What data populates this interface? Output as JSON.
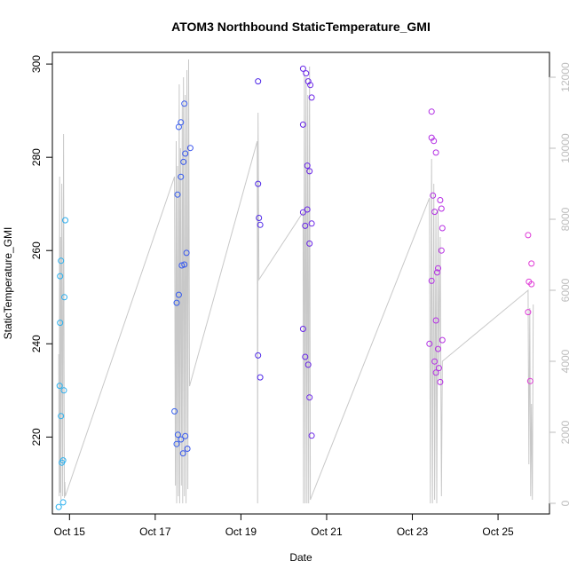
{
  "chart_data": {
    "type": "scatter",
    "title": "ATOM3 Northbound StaticTemperature_GMI",
    "xlabel": "Date",
    "ylabel": "StaticTemperature_GMI",
    "xlim": [
      14.6,
      26.2
    ],
    "ylim": [
      203.5,
      302.5
    ],
    "y2lim": [
      -300,
      12700
    ],
    "x_ticks": [
      {
        "value": 15,
        "label": "Oct 15"
      },
      {
        "value": 17,
        "label": "Oct 17"
      },
      {
        "value": 19,
        "label": "Oct 19"
      },
      {
        "value": 21,
        "label": "Oct 21"
      },
      {
        "value": 23,
        "label": "Oct 23"
      },
      {
        "value": 25,
        "label": "Oct 25"
      }
    ],
    "y_ticks": [
      220,
      240,
      260,
      280,
      300
    ],
    "y2_ticks": [
      0,
      2000,
      4000,
      6000,
      8000,
      10000,
      12000
    ],
    "grid": false,
    "legend": "none",
    "colors": {
      "secondary_line": "#c8c8c8",
      "right_axis": "#bdbdbd",
      "point_gradient": [
        "#2bb2ee",
        "#2d6df0",
        "#4a2ae8",
        "#7b22e6",
        "#b52ee4",
        "#e03ad6"
      ]
    },
    "points": [
      {
        "x": 14.75,
        "y": 205.0
      },
      {
        "x": 14.77,
        "y": 231.0
      },
      {
        "x": 14.78,
        "y": 244.5
      },
      {
        "x": 14.78,
        "y": 254.5
      },
      {
        "x": 14.8,
        "y": 257.8
      },
      {
        "x": 14.8,
        "y": 224.5
      },
      {
        "x": 14.82,
        "y": 214.5
      },
      {
        "x": 14.85,
        "y": 215.0
      },
      {
        "x": 14.85,
        "y": 206.0
      },
      {
        "x": 14.87,
        "y": 230.0
      },
      {
        "x": 14.88,
        "y": 250.0
      },
      {
        "x": 14.9,
        "y": 266.5
      },
      {
        "x": 17.45,
        "y": 225.5
      },
      {
        "x": 17.5,
        "y": 218.5
      },
      {
        "x": 17.5,
        "y": 248.8
      },
      {
        "x": 17.52,
        "y": 272.0
      },
      {
        "x": 17.53,
        "y": 220.5
      },
      {
        "x": 17.55,
        "y": 250.5
      },
      {
        "x": 17.55,
        "y": 286.5
      },
      {
        "x": 17.6,
        "y": 287.5
      },
      {
        "x": 17.6,
        "y": 275.8
      },
      {
        "x": 17.62,
        "y": 256.8
      },
      {
        "x": 17.65,
        "y": 216.5
      },
      {
        "x": 17.66,
        "y": 279.0
      },
      {
        "x": 17.68,
        "y": 257.0
      },
      {
        "x": 17.68,
        "y": 291.5
      },
      {
        "x": 17.7,
        "y": 280.8
      },
      {
        "x": 17.7,
        "y": 220.2
      },
      {
        "x": 17.73,
        "y": 259.5
      },
      {
        "x": 17.75,
        "y": 217.5
      },
      {
        "x": 17.82,
        "y": 282.0
      },
      {
        "x": 17.6,
        "y": 219.5
      },
      {
        "x": 19.4,
        "y": 296.3
      },
      {
        "x": 19.4,
        "y": 274.3
      },
      {
        "x": 19.4,
        "y": 237.5
      },
      {
        "x": 19.42,
        "y": 267.0
      },
      {
        "x": 19.45,
        "y": 265.5
      },
      {
        "x": 19.45,
        "y": 232.8
      },
      {
        "x": 20.45,
        "y": 299.0
      },
      {
        "x": 20.45,
        "y": 287.0
      },
      {
        "x": 20.45,
        "y": 268.2
      },
      {
        "x": 20.45,
        "y": 243.2
      },
      {
        "x": 20.5,
        "y": 265.3
      },
      {
        "x": 20.5,
        "y": 237.2
      },
      {
        "x": 20.52,
        "y": 298.0
      },
      {
        "x": 20.55,
        "y": 278.2
      },
      {
        "x": 20.55,
        "y": 268.8
      },
      {
        "x": 20.57,
        "y": 296.3
      },
      {
        "x": 20.57,
        "y": 235.5
      },
      {
        "x": 20.6,
        "y": 277.0
      },
      {
        "x": 20.6,
        "y": 261.5
      },
      {
        "x": 20.6,
        "y": 228.5
      },
      {
        "x": 20.62,
        "y": 295.5
      },
      {
        "x": 20.65,
        "y": 292.8
      },
      {
        "x": 20.65,
        "y": 265.8
      },
      {
        "x": 20.65,
        "y": 220.3
      },
      {
        "x": 23.4,
        "y": 240.0
      },
      {
        "x": 23.45,
        "y": 289.8
      },
      {
        "x": 23.45,
        "y": 284.2
      },
      {
        "x": 23.45,
        "y": 253.5
      },
      {
        "x": 23.48,
        "y": 271.8
      },
      {
        "x": 23.5,
        "y": 283.5
      },
      {
        "x": 23.52,
        "y": 268.3
      },
      {
        "x": 23.52,
        "y": 236.2
      },
      {
        "x": 23.55,
        "y": 281.0
      },
      {
        "x": 23.55,
        "y": 245.0
      },
      {
        "x": 23.55,
        "y": 233.8
      },
      {
        "x": 23.58,
        "y": 255.3
      },
      {
        "x": 23.6,
        "y": 256.2
      },
      {
        "x": 23.6,
        "y": 238.9
      },
      {
        "x": 23.62,
        "y": 234.8
      },
      {
        "x": 23.65,
        "y": 270.8
      },
      {
        "x": 23.65,
        "y": 231.8
      },
      {
        "x": 23.68,
        "y": 269.0
      },
      {
        "x": 23.68,
        "y": 260.0
      },
      {
        "x": 23.7,
        "y": 264.8
      },
      {
        "x": 23.7,
        "y": 240.8
      },
      {
        "x": 25.7,
        "y": 263.3
      },
      {
        "x": 25.7,
        "y": 246.8
      },
      {
        "x": 25.72,
        "y": 253.3
      },
      {
        "x": 25.75,
        "y": 232.0
      },
      {
        "x": 25.78,
        "y": 257.2
      },
      {
        "x": 25.78,
        "y": 252.8
      }
    ],
    "secondary_line": [
      {
        "x": 14.75,
        "y2": 4200
      },
      {
        "x": 14.76,
        "y2": 200
      },
      {
        "x": 14.77,
        "y2": 9200
      },
      {
        "x": 14.78,
        "y2": 300
      },
      {
        "x": 14.79,
        "y2": 7500
      },
      {
        "x": 14.8,
        "y2": 100
      },
      {
        "x": 14.82,
        "y2": 9000
      },
      {
        "x": 14.84,
        "y2": 200
      },
      {
        "x": 14.86,
        "y2": 10400
      },
      {
        "x": 14.88,
        "y2": 150
      },
      {
        "x": 14.89,
        "y2": 600
      },
      {
        "x": 14.9,
        "y2": 200
      },
      {
        "x": 17.45,
        "y2": 9200
      },
      {
        "x": 17.47,
        "y2": 500
      },
      {
        "x": 17.49,
        "y2": 10200
      },
      {
        "x": 17.5,
        "y2": 0
      },
      {
        "x": 17.52,
        "y2": 9500
      },
      {
        "x": 17.54,
        "y2": 200
      },
      {
        "x": 17.56,
        "y2": 11800
      },
      {
        "x": 17.57,
        "y2": 0
      },
      {
        "x": 17.59,
        "y2": 10000
      },
      {
        "x": 17.61,
        "y2": 500
      },
      {
        "x": 17.63,
        "y2": 11200
      },
      {
        "x": 17.64,
        "y2": 0
      },
      {
        "x": 17.66,
        "y2": 12000
      },
      {
        "x": 17.68,
        "y2": 200
      },
      {
        "x": 17.7,
        "y2": 11500
      },
      {
        "x": 17.72,
        "y2": 0
      },
      {
        "x": 17.74,
        "y2": 12200
      },
      {
        "x": 17.76,
        "y2": 400
      },
      {
        "x": 17.78,
        "y2": 12500
      },
      {
        "x": 17.8,
        "y2": 3300
      },
      {
        "x": 19.38,
        "y2": 10200
      },
      {
        "x": 19.39,
        "y2": 0
      },
      {
        "x": 19.4,
        "y2": 11000
      },
      {
        "x": 19.42,
        "y2": 6300
      },
      {
        "x": 20.45,
        "y2": 8200
      },
      {
        "x": 20.46,
        "y2": 0
      },
      {
        "x": 20.48,
        "y2": 12100
      },
      {
        "x": 20.5,
        "y2": 0
      },
      {
        "x": 20.52,
        "y2": 12000
      },
      {
        "x": 20.54,
        "y2": 0
      },
      {
        "x": 20.56,
        "y2": 11500
      },
      {
        "x": 20.58,
        "y2": 0
      },
      {
        "x": 20.6,
        "y2": 12300
      },
      {
        "x": 20.62,
        "y2": 100
      },
      {
        "x": 20.65,
        "y2": 200
      },
      {
        "x": 23.4,
        "y2": 8600
      },
      {
        "x": 23.42,
        "y2": 0
      },
      {
        "x": 23.45,
        "y2": 9700
      },
      {
        "x": 23.47,
        "y2": 0
      },
      {
        "x": 23.5,
        "y2": 9000
      },
      {
        "x": 23.52,
        "y2": 100
      },
      {
        "x": 23.55,
        "y2": 8200
      },
      {
        "x": 23.57,
        "y2": 0
      },
      {
        "x": 23.6,
        "y2": 8300
      },
      {
        "x": 23.62,
        "y2": 3500
      },
      {
        "x": 23.65,
        "y2": 7500
      },
      {
        "x": 23.68,
        "y2": 200
      },
      {
        "x": 23.7,
        "y2": 4000
      },
      {
        "x": 25.7,
        "y2": 6000
      },
      {
        "x": 25.72,
        "y2": 1100
      },
      {
        "x": 25.74,
        "y2": 5500
      },
      {
        "x": 25.76,
        "y2": 200
      },
      {
        "x": 25.78,
        "y2": 2800
      },
      {
        "x": 25.8,
        "y2": 100
      },
      {
        "x": 25.82,
        "y2": 5600
      }
    ]
  }
}
